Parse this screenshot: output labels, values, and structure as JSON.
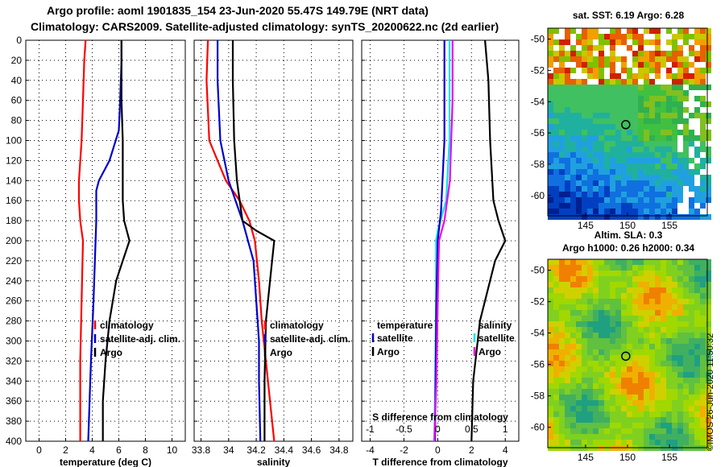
{
  "header": {
    "line1": "Argo profile: aoml 1901835_154 23-Jun-2020 55.47S 149.79E (NRT data)",
    "line2": "Climatology: CARS2009. Satellite-adjusted climatology: synTS_20200622.nc (2d earlier)"
  },
  "sst_map": {
    "title": "sat. SST: 6.19 Argo: 6.28",
    "x_ticks": [
      "145",
      "150",
      "155"
    ],
    "y_ticks": [
      "-50",
      "-52",
      "-54",
      "-56",
      "-58",
      "-60"
    ],
    "marker_lon": 149.79,
    "marker_lat": -55.47
  },
  "sla_map": {
    "title_line1": "Altim. SLA: 0.3",
    "title_line2": "Argo h1000: 0.26 h2000: 0.34",
    "x_ticks": [
      "145",
      "150",
      "155"
    ],
    "y_ticks": [
      "-50",
      "-52",
      "-54",
      "-56",
      "-58",
      "-60"
    ],
    "marker_lon": 149.79,
    "marker_lat": -55.47
  },
  "watermark": "©IMOS 26-Jun-2020 11:50:32",
  "colors": {
    "climatology": "#ff0000",
    "satellite": "#0000cc",
    "argo": "#000000",
    "t_diff": "#00e5ee",
    "s_diff": "#ee00ee"
  },
  "chart_data": [
    {
      "type": "line",
      "xlabel": "temperature (deg C)",
      "ylabel": "",
      "xlim": [
        -1,
        11
      ],
      "ylim": [
        400,
        0
      ],
      "x_ticks": [
        "0",
        "2",
        "4",
        "6",
        "8",
        "10"
      ],
      "y_ticks": [
        "0",
        "20",
        "40",
        "60",
        "80",
        "100",
        "120",
        "140",
        "160",
        "180",
        "200",
        "220",
        "240",
        "260",
        "280",
        "300",
        "320",
        "340",
        "360",
        "380",
        "400"
      ],
      "legend": [
        "climatology",
        "satellite-adj. clim.",
        "Argo"
      ],
      "series": [
        {
          "name": "climatology",
          "depth": [
            0,
            20,
            60,
            100,
            140,
            160,
            180,
            200,
            260,
            320,
            400
          ],
          "values": [
            3.5,
            3.4,
            3.3,
            3.2,
            3.0,
            3.0,
            3.1,
            3.3,
            3.2,
            3.1,
            3.1
          ]
        },
        {
          "name": "satellite-adj. clim.",
          "depth": [
            0,
            20,
            60,
            90,
            120,
            140,
            150,
            180,
            220,
            260,
            320,
            400
          ],
          "values": [
            6.2,
            6.2,
            6.1,
            6.0,
            5.3,
            4.5,
            4.3,
            4.3,
            4.2,
            4.1,
            3.9,
            3.7
          ]
        },
        {
          "name": "Argo",
          "depth": [
            0,
            60,
            100,
            160,
            180,
            200,
            220,
            240,
            280,
            320,
            360,
            400
          ],
          "values": [
            6.2,
            6.2,
            6.3,
            6.3,
            6.4,
            6.8,
            6.3,
            5.8,
            5.3,
            5.0,
            4.8,
            4.8
          ]
        }
      ]
    },
    {
      "type": "line",
      "xlabel": "salinity",
      "xlim": [
        33.75,
        34.9
      ],
      "ylim": [
        400,
        0
      ],
      "x_ticks": [
        "33.8",
        "34",
        "34.2",
        "34.4",
        "34.6",
        "34.8"
      ],
      "legend": [
        "climatology",
        "satellite-adj. clim.",
        "Argo"
      ],
      "series": [
        {
          "name": "climatology",
          "depth": [
            0,
            40,
            100,
            140,
            160,
            180,
            200,
            240,
            280,
            320,
            360,
            400
          ],
          "values": [
            33.85,
            33.84,
            33.86,
            33.98,
            34.08,
            34.15,
            34.19,
            34.22,
            34.24,
            34.27,
            34.3,
            34.33
          ]
        },
        {
          "name": "satellite-adj. clim.",
          "depth": [
            0,
            40,
            100,
            140,
            180,
            220,
            260,
            300,
            340,
            400
          ],
          "values": [
            33.92,
            33.92,
            33.94,
            34.0,
            34.1,
            34.18,
            34.2,
            34.22,
            34.22,
            34.23
          ]
        },
        {
          "name": "Argo",
          "depth": [
            0,
            40,
            100,
            140,
            180,
            190,
            200,
            240,
            280,
            340,
            400
          ],
          "values": [
            34.03,
            34.03,
            34.04,
            34.06,
            34.1,
            34.2,
            34.33,
            34.3,
            34.27,
            34.26,
            34.26
          ]
        }
      ]
    },
    {
      "type": "line",
      "xlabel": "T difference from climatology",
      "top_axis_label": "S difference from climatology",
      "xlim": [
        -4.5,
        4.8
      ],
      "ylim": [
        400,
        0
      ],
      "x_ticks": [
        "-4",
        "-2",
        "0",
        "2",
        "4"
      ],
      "top_ticks": [
        "-1",
        "-0.5",
        "0",
        "0.5",
        "1"
      ],
      "top_tick_values": [
        -1,
        -0.5,
        0,
        0.5,
        1
      ],
      "legend_temperature": [
        "temperature",
        "satellite",
        "Argo"
      ],
      "legend_salinity": [
        "salinity",
        "satellite",
        "Argo"
      ],
      "series": [
        {
          "name": "T satellite",
          "depth": [
            0,
            100,
            160,
            190,
            200,
            260,
            340,
            400
          ],
          "values": [
            0.7,
            0.7,
            0.5,
            0.0,
            -0.1,
            -0.1,
            -0.15,
            -0.2
          ]
        },
        {
          "name": "T Argo",
          "depth": [
            0,
            40,
            100,
            160,
            180,
            200,
            220,
            280,
            340,
            400
          ],
          "values": [
            2.8,
            3.0,
            3.1,
            3.3,
            3.6,
            4.0,
            3.4,
            2.5,
            2.1,
            2.0
          ]
        },
        {
          "name": "S satellite",
          "depth": [
            0,
            100,
            170,
            200,
            260,
            400
          ],
          "values": [
            0.1,
            0.1,
            0.05,
            0.0,
            -0.02,
            -0.04
          ]
        },
        {
          "name": "S Argo",
          "depth": [
            0,
            60,
            100,
            140,
            180,
            200,
            260,
            340,
            400
          ],
          "values": [
            0.22,
            0.22,
            0.2,
            0.18,
            0.1,
            0.02,
            0.0,
            -0.02,
            -0.05
          ]
        }
      ]
    }
  ]
}
